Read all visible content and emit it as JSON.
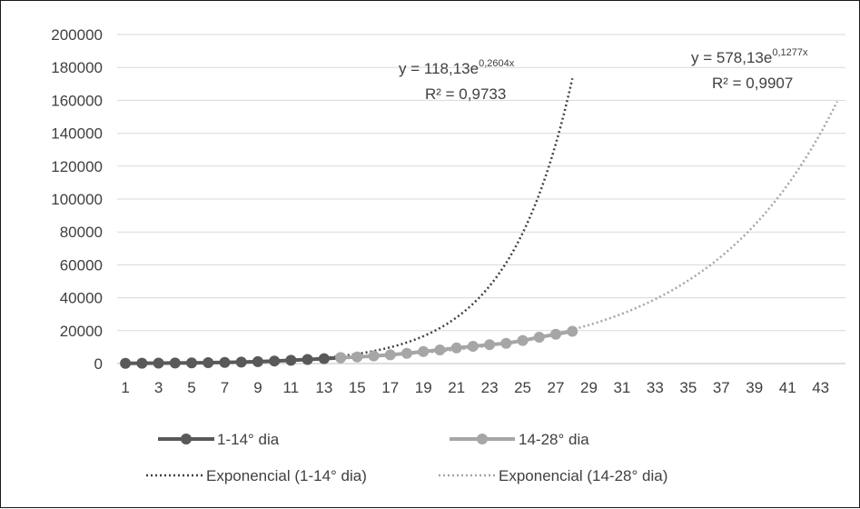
{
  "chart_data": {
    "type": "line",
    "x": [
      1,
      2,
      3,
      4,
      5,
      6,
      7,
      8,
      9,
      10,
      11,
      12,
      13,
      14,
      15,
      16,
      17,
      18,
      19,
      20,
      21,
      22,
      23,
      24,
      25,
      26,
      27,
      28,
      29,
      30,
      31,
      32,
      33,
      34,
      35,
      36,
      37,
      38,
      39,
      40,
      41,
      42,
      43,
      44
    ],
    "xticks": [
      "1",
      "3",
      "5",
      "7",
      "9",
      "11",
      "13",
      "15",
      "17",
      "19",
      "21",
      "23",
      "25",
      "27",
      "29",
      "31",
      "33",
      "35",
      "37",
      "39",
      "41",
      "43"
    ],
    "ylim": [
      0,
      200000
    ],
    "yticks": [
      "0",
      "20000",
      "40000",
      "60000",
      "80000",
      "100000",
      "120000",
      "140000",
      "160000",
      "180000",
      "200000"
    ],
    "grid": true,
    "legend_position": "bottom",
    "series": [
      {
        "name": "1-14° dia",
        "color": "#595959",
        "marker": "circle",
        "x": [
          1,
          2,
          3,
          4,
          5,
          6,
          7,
          8,
          9,
          10,
          11,
          12,
          13,
          14
        ],
        "values": [
          150,
          200,
          260,
          340,
          440,
          560,
          720,
          930,
          1200,
          1550,
          2000,
          2500,
          3000,
          3600
        ]
      },
      {
        "name": "14-28° dia",
        "color": "#a6a6a6",
        "marker": "circle",
        "x": [
          14,
          15,
          16,
          17,
          18,
          19,
          20,
          21,
          22,
          23,
          24,
          25,
          26,
          27,
          28
        ],
        "values": [
          3600,
          4000,
          4600,
          5300,
          6200,
          7300,
          8300,
          9500,
          10500,
          11500,
          12300,
          14000,
          16000,
          17800,
          19600
        ]
      }
    ],
    "trendlines": [
      {
        "name": "Exponencial (1-14° dia)",
        "color": "#404040",
        "style": "dotted",
        "a": 118.13,
        "b": 0.2604,
        "x_range": [
          1,
          28
        ],
        "equation_prefix": "y = 118,13e",
        "equation_exponent": "0,2604x",
        "r2": "R² = 0,9733"
      },
      {
        "name": "Exponencial (14-28° dia)",
        "color": "#a6a6a6",
        "style": "dotted",
        "a": 578.13,
        "b": 0.1277,
        "x_range": [
          14,
          44
        ],
        "equation_prefix": "y = 578,13e",
        "equation_exponent": "0,1277x",
        "r2": "R² = 0,9907"
      }
    ]
  }
}
